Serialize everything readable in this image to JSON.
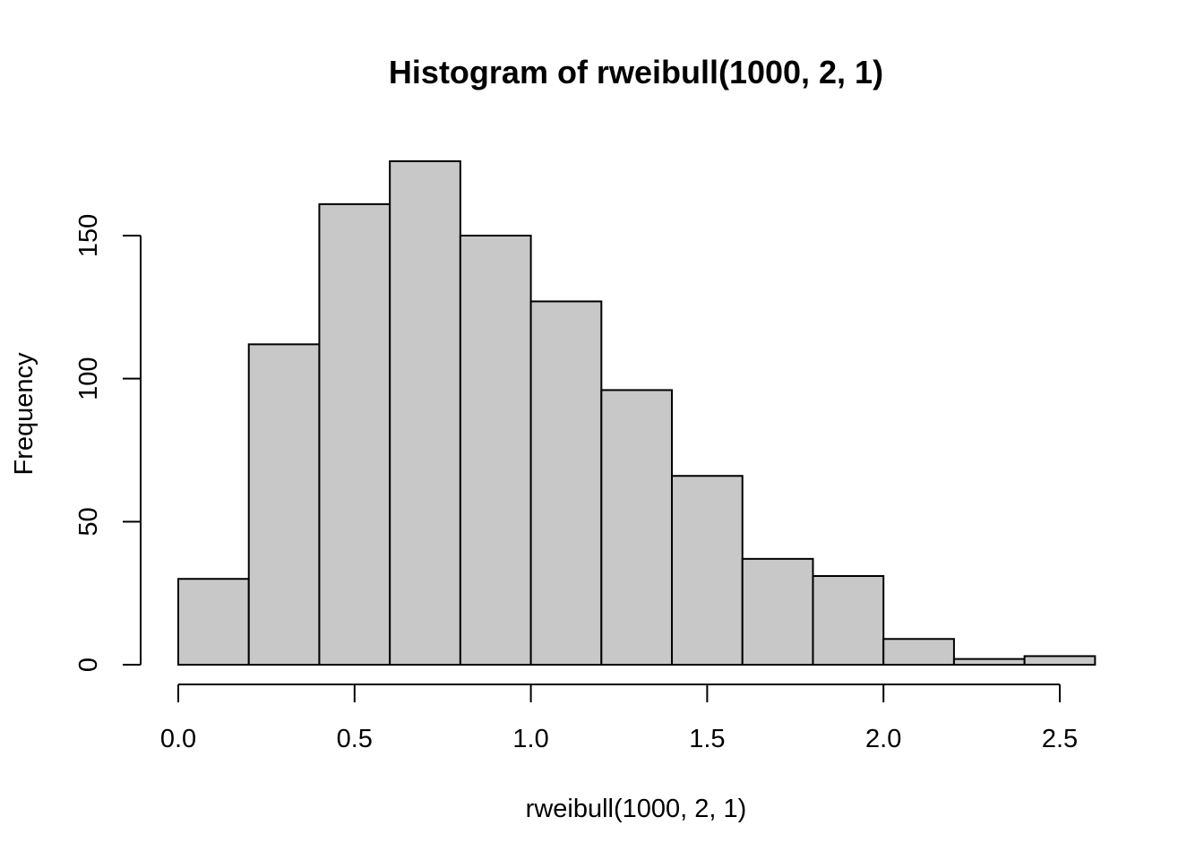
{
  "chart_data": {
    "type": "bar",
    "title": "Histogram of rweibull(1000, 2, 1)",
    "xlabel": "rweibull(1000, 2, 1)",
    "ylabel": "Frequency",
    "bar_color": "#c8c8c8",
    "outline_color": "#000000",
    "bins": [
      {
        "from": 0.0,
        "to": 0.2,
        "count": 30
      },
      {
        "from": 0.2,
        "to": 0.4,
        "count": 112
      },
      {
        "from": 0.4,
        "to": 0.6,
        "count": 161
      },
      {
        "from": 0.6,
        "to": 0.8,
        "count": 176
      },
      {
        "from": 0.8,
        "to": 1.0,
        "count": 150
      },
      {
        "from": 1.0,
        "to": 1.2,
        "count": 127
      },
      {
        "from": 1.2,
        "to": 1.4,
        "count": 96
      },
      {
        "from": 1.4,
        "to": 1.6,
        "count": 66
      },
      {
        "from": 1.6,
        "to": 1.8,
        "count": 37
      },
      {
        "from": 1.8,
        "to": 2.0,
        "count": 31
      },
      {
        "from": 2.0,
        "to": 2.2,
        "count": 9
      },
      {
        "from": 2.2,
        "to": 2.4,
        "count": 2
      },
      {
        "from": 2.4,
        "to": 2.6,
        "count": 3
      }
    ],
    "x_ticks": [
      {
        "value": 0.0,
        "label": "0.0"
      },
      {
        "value": 0.5,
        "label": "0.5"
      },
      {
        "value": 1.0,
        "label": "1.0"
      },
      {
        "value": 1.5,
        "label": "1.5"
      },
      {
        "value": 2.0,
        "label": "2.0"
      },
      {
        "value": 2.5,
        "label": "2.5"
      }
    ],
    "y_ticks": [
      {
        "value": 0,
        "label": "0"
      },
      {
        "value": 50,
        "label": "50"
      },
      {
        "value": 100,
        "label": "100"
      },
      {
        "value": 150,
        "label": "150"
      }
    ],
    "xlim": [
      0.0,
      2.6
    ],
    "ylim": [
      0,
      176
    ],
    "grid": false,
    "legend": "none"
  }
}
